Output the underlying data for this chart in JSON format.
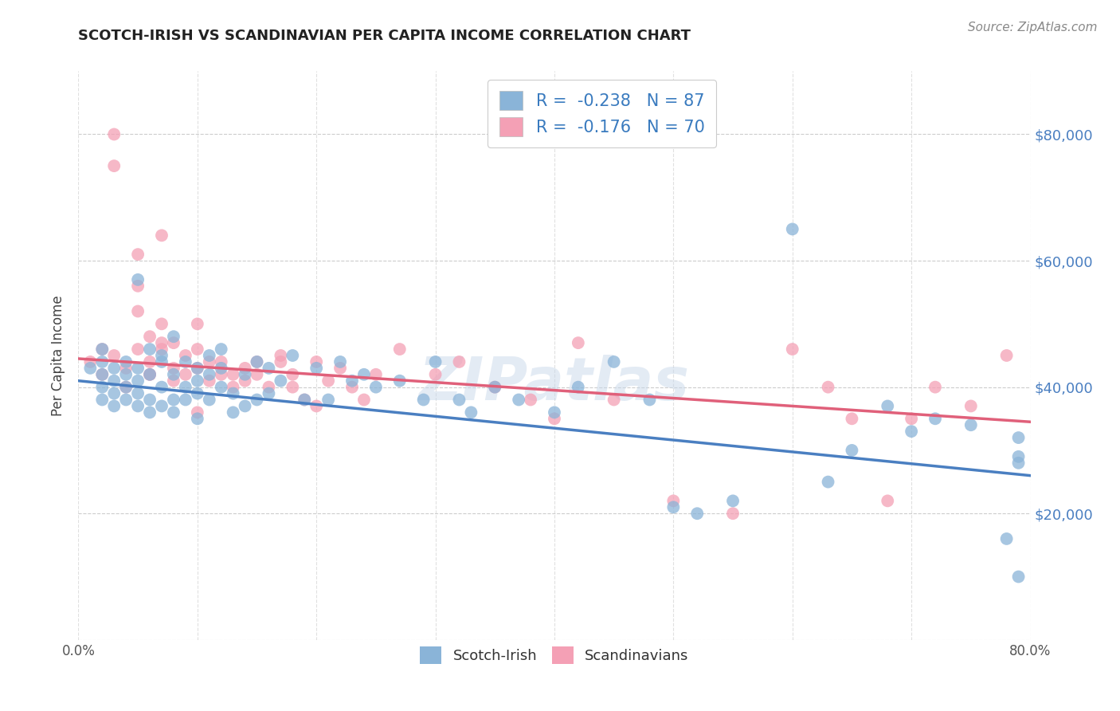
{
  "title": "SCOTCH-IRISH VS SCANDINAVIAN PER CAPITA INCOME CORRELATION CHART",
  "source": "Source: ZipAtlas.com",
  "ylabel": "Per Capita Income",
  "xlim": [
    0.0,
    0.8
  ],
  "ylim": [
    0,
    90000
  ],
  "color_blue": "#8ab4d8",
  "color_pink": "#f4a0b5",
  "line_color_blue": "#4a7fc1",
  "line_color_pink": "#e0607a",
  "R_blue": -0.238,
  "N_blue": 87,
  "R_pink": -0.176,
  "N_pink": 70,
  "legend_label_blue": "Scotch-Irish",
  "legend_label_pink": "Scandinavians",
  "watermark": "ZIPatlas",
  "blue_intercept": 41000,
  "blue_slope": -15000,
  "pink_intercept": 44500,
  "pink_slope": -10000,
  "blue_x": [
    0.01,
    0.02,
    0.02,
    0.02,
    0.02,
    0.02,
    0.03,
    0.03,
    0.03,
    0.03,
    0.04,
    0.04,
    0.04,
    0.04,
    0.05,
    0.05,
    0.05,
    0.05,
    0.05,
    0.06,
    0.06,
    0.06,
    0.06,
    0.07,
    0.07,
    0.07,
    0.07,
    0.08,
    0.08,
    0.08,
    0.08,
    0.09,
    0.09,
    0.09,
    0.1,
    0.1,
    0.1,
    0.1,
    0.11,
    0.11,
    0.11,
    0.12,
    0.12,
    0.12,
    0.13,
    0.13,
    0.14,
    0.14,
    0.15,
    0.15,
    0.16,
    0.16,
    0.17,
    0.18,
    0.19,
    0.2,
    0.21,
    0.22,
    0.23,
    0.24,
    0.25,
    0.27,
    0.29,
    0.3,
    0.32,
    0.33,
    0.35,
    0.37,
    0.4,
    0.42,
    0.45,
    0.48,
    0.5,
    0.52,
    0.55,
    0.6,
    0.63,
    0.65,
    0.68,
    0.7,
    0.72,
    0.75,
    0.78,
    0.79,
    0.79,
    0.79,
    0.79
  ],
  "blue_y": [
    43000,
    44000,
    40000,
    38000,
    42000,
    46000,
    37000,
    41000,
    43000,
    39000,
    38000,
    42000,
    44000,
    40000,
    57000,
    39000,
    43000,
    37000,
    41000,
    46000,
    38000,
    42000,
    36000,
    45000,
    37000,
    40000,
    44000,
    48000,
    38000,
    42000,
    36000,
    44000,
    38000,
    40000,
    43000,
    35000,
    41000,
    39000,
    45000,
    38000,
    42000,
    46000,
    40000,
    43000,
    39000,
    36000,
    42000,
    37000,
    44000,
    38000,
    43000,
    39000,
    41000,
    45000,
    38000,
    43000,
    38000,
    44000,
    41000,
    42000,
    40000,
    41000,
    38000,
    44000,
    38000,
    36000,
    40000,
    38000,
    36000,
    40000,
    44000,
    38000,
    21000,
    20000,
    22000,
    65000,
    25000,
    30000,
    37000,
    33000,
    35000,
    34000,
    16000,
    29000,
    28000,
    32000,
    10000
  ],
  "pink_x": [
    0.01,
    0.02,
    0.02,
    0.03,
    0.03,
    0.04,
    0.04,
    0.05,
    0.05,
    0.05,
    0.06,
    0.06,
    0.06,
    0.07,
    0.07,
    0.07,
    0.08,
    0.08,
    0.08,
    0.09,
    0.09,
    0.1,
    0.1,
    0.1,
    0.11,
    0.11,
    0.12,
    0.12,
    0.13,
    0.13,
    0.14,
    0.14,
    0.15,
    0.15,
    0.16,
    0.17,
    0.18,
    0.18,
    0.19,
    0.2,
    0.21,
    0.22,
    0.23,
    0.24,
    0.25,
    0.27,
    0.3,
    0.32,
    0.35,
    0.38,
    0.4,
    0.42,
    0.45,
    0.5,
    0.55,
    0.6,
    0.63,
    0.65,
    0.68,
    0.7,
    0.72,
    0.75,
    0.78,
    0.03,
    0.05,
    0.06,
    0.07,
    0.1,
    0.17,
    0.2
  ],
  "pink_y": [
    44000,
    42000,
    46000,
    80000,
    75000,
    43000,
    40000,
    61000,
    52000,
    46000,
    48000,
    44000,
    42000,
    50000,
    46000,
    64000,
    47000,
    43000,
    41000,
    45000,
    42000,
    46000,
    43000,
    50000,
    44000,
    41000,
    44000,
    42000,
    42000,
    40000,
    43000,
    41000,
    44000,
    42000,
    40000,
    45000,
    42000,
    40000,
    38000,
    44000,
    41000,
    43000,
    40000,
    38000,
    42000,
    46000,
    42000,
    44000,
    40000,
    38000,
    35000,
    47000,
    38000,
    22000,
    20000,
    46000,
    40000,
    35000,
    22000,
    35000,
    40000,
    37000,
    45000,
    45000,
    56000,
    42000,
    47000,
    36000,
    44000,
    37000
  ]
}
